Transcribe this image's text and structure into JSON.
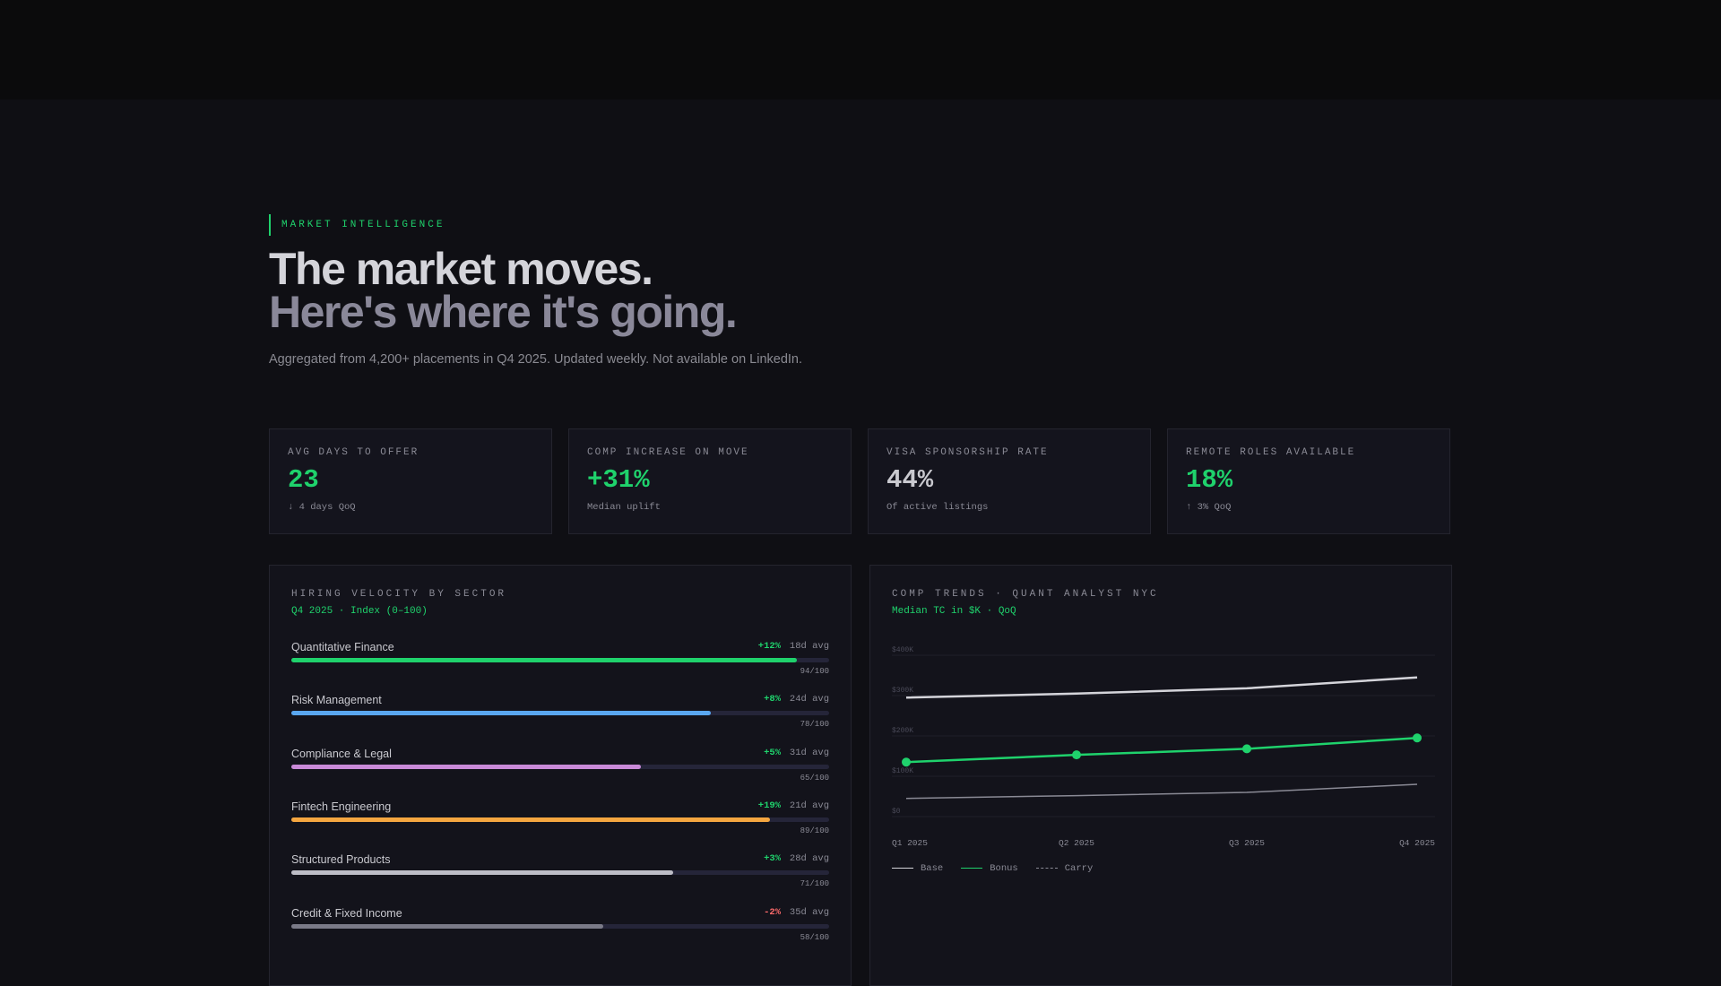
{
  "hero": {
    "eyebrow": "MARKET INTELLIGENCE",
    "title_line1": "The market moves.",
    "title_line2": "Here's where it's going.",
    "subtitle": "Aggregated from 4,200+ placements in Q4 2025. Updated weekly. Not available on LinkedIn."
  },
  "kpis": [
    {
      "label": "AVG DAYS TO OFFER",
      "value": "23",
      "note": "↓ 4 days QoQ",
      "color": "#1fd26c"
    },
    {
      "label": "COMP INCREASE ON MOVE",
      "value": "+31%",
      "note": "Median uplift",
      "color": "#1fd26c"
    },
    {
      "label": "VISA SPONSORSHIP RATE",
      "value": "44%",
      "note": "Of active listings",
      "color": "#c9c9cf"
    },
    {
      "label": "REMOTE ROLES AVAILABLE",
      "value": "18%",
      "note": "↑ 3% QoQ",
      "color": "#1fd26c"
    }
  ],
  "velocity": {
    "title": "HIRING VELOCITY BY SECTOR",
    "subtitle": "Q4 2025 · Index (0–100)",
    "sectors": [
      {
        "name": "Quantitative Finance",
        "change": "+12%",
        "avg": "18d avg",
        "score": "94/100",
        "value": 94,
        "color": "#1fd26c",
        "change_color": "#1fd26c"
      },
      {
        "name": "Risk Management",
        "change": "+8%",
        "avg": "24d avg",
        "score": "78/100",
        "value": 78,
        "color": "#5aa7f0",
        "change_color": "#1fd26c"
      },
      {
        "name": "Compliance & Legal",
        "change": "+5%",
        "avg": "31d avg",
        "score": "65/100",
        "value": 65,
        "color": "#c98ad8",
        "change_color": "#1fd26c"
      },
      {
        "name": "Fintech Engineering",
        "change": "+19%",
        "avg": "21d avg",
        "score": "89/100",
        "value": 89,
        "color": "#f4a640",
        "change_color": "#1fd26c"
      },
      {
        "name": "Structured Products",
        "change": "+3%",
        "avg": "28d avg",
        "score": "71/100",
        "value": 71,
        "color": "#bdbdc6",
        "change_color": "#1fd26c"
      },
      {
        "name": "Credit & Fixed Income",
        "change": "-2%",
        "avg": "35d avg",
        "score": "58/100",
        "value": 58,
        "color": "#7a7a88",
        "change_color": "#ff6b6b"
      }
    ]
  },
  "trends": {
    "title": "COMP TRENDS · QUANT ANALYST NYC",
    "subtitle": "Median TC in $K · QoQ"
  },
  "chart_data": {
    "type": "line",
    "title": "COMP TRENDS · QUANT ANALYST NYC",
    "subtitle": "Median TC in $K · QoQ",
    "x": [
      "Q1 2025",
      "Q2 2025",
      "Q3 2025",
      "Q4 2025"
    ],
    "y_ticks": [
      "$0",
      "$100K",
      "$200K",
      "$300K",
      "$400K"
    ],
    "ylim": [
      0,
      400
    ],
    "grid": true,
    "legend_position": "bottom-left",
    "series": [
      {
        "name": "Base",
        "values": [
          295,
          305,
          318,
          345
        ],
        "color": "#d4d4da",
        "style": "solid",
        "markers": false
      },
      {
        "name": "Bonus",
        "values": [
          135,
          153,
          168,
          195
        ],
        "color": "#1fd26c",
        "style": "solid",
        "markers": true
      },
      {
        "name": "Carry",
        "values": [
          45,
          52,
          60,
          80
        ],
        "color": "#8a8a95",
        "style": "solid",
        "markers": false
      }
    ]
  }
}
